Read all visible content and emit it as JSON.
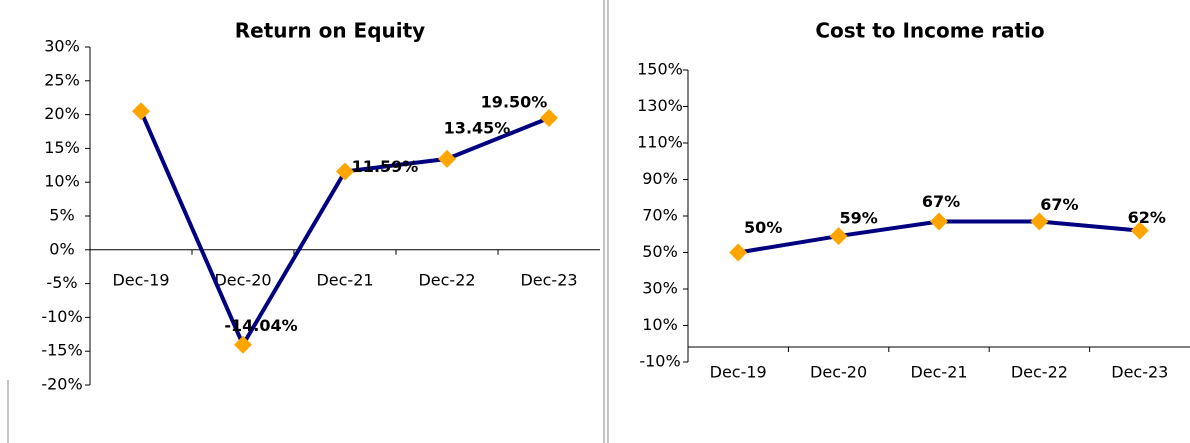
{
  "chart_data": [
    {
      "type": "line",
      "title": "Return on Equity",
      "categories": [
        "Dec-19",
        "Dec-20",
        "Dec-21",
        "Dec-22",
        "Dec-23"
      ],
      "series": [
        {
          "name": null,
          "color": "#000080",
          "marker_color": "#ffa500",
          "values": [
            20.5,
            -14.04,
            11.59,
            13.45,
            19.5
          ],
          "value_labels": [
            null,
            "-14.04%",
            "11.59%",
            "13.45%",
            "19.50%"
          ]
        }
      ],
      "ylim": [
        -20,
        30
      ],
      "yticks": [
        {
          "value": -20,
          "label": "-20%"
        },
        {
          "value": -15,
          "label": "-15%"
        },
        {
          "value": -10,
          "label": "-10%"
        },
        {
          "value": -5,
          "label": "-5%"
        },
        {
          "value": 0,
          "label": "0%"
        },
        {
          "value": 5,
          "label": "5%"
        },
        {
          "value": 10,
          "label": "10%"
        },
        {
          "value": 15,
          "label": "15%"
        },
        {
          "value": 20,
          "label": "20%"
        },
        {
          "value": 25,
          "label": "25%"
        },
        {
          "value": 30,
          "label": "30%"
        }
      ]
    },
    {
      "type": "line",
      "title": "Cost to Income ratio",
      "categories": [
        "Dec-19",
        "Dec-20",
        "Dec-21",
        "Dec-22",
        "Dec-23"
      ],
      "series": [
        {
          "name": null,
          "color": "#000080",
          "marker_color": "#ffa500",
          "values": [
            50,
            59,
            67,
            67,
            62
          ],
          "value_labels": [
            "50%",
            "59%",
            "67%",
            "67%",
            "62%"
          ]
        }
      ],
      "ylim": [
        -10,
        150
      ],
      "yticks": [
        {
          "value": -10,
          "label": "-10%"
        },
        {
          "value": 10,
          "label": "10%"
        },
        {
          "value": 30,
          "label": "30%"
        },
        {
          "value": 50,
          "label": "50%"
        },
        {
          "value": 70,
          "label": "70%"
        },
        {
          "value": 90,
          "label": "90%"
        },
        {
          "value": 110,
          "label": "110%"
        },
        {
          "value": 130,
          "label": "130%"
        },
        {
          "value": 150,
          "label": "150%"
        }
      ]
    }
  ]
}
